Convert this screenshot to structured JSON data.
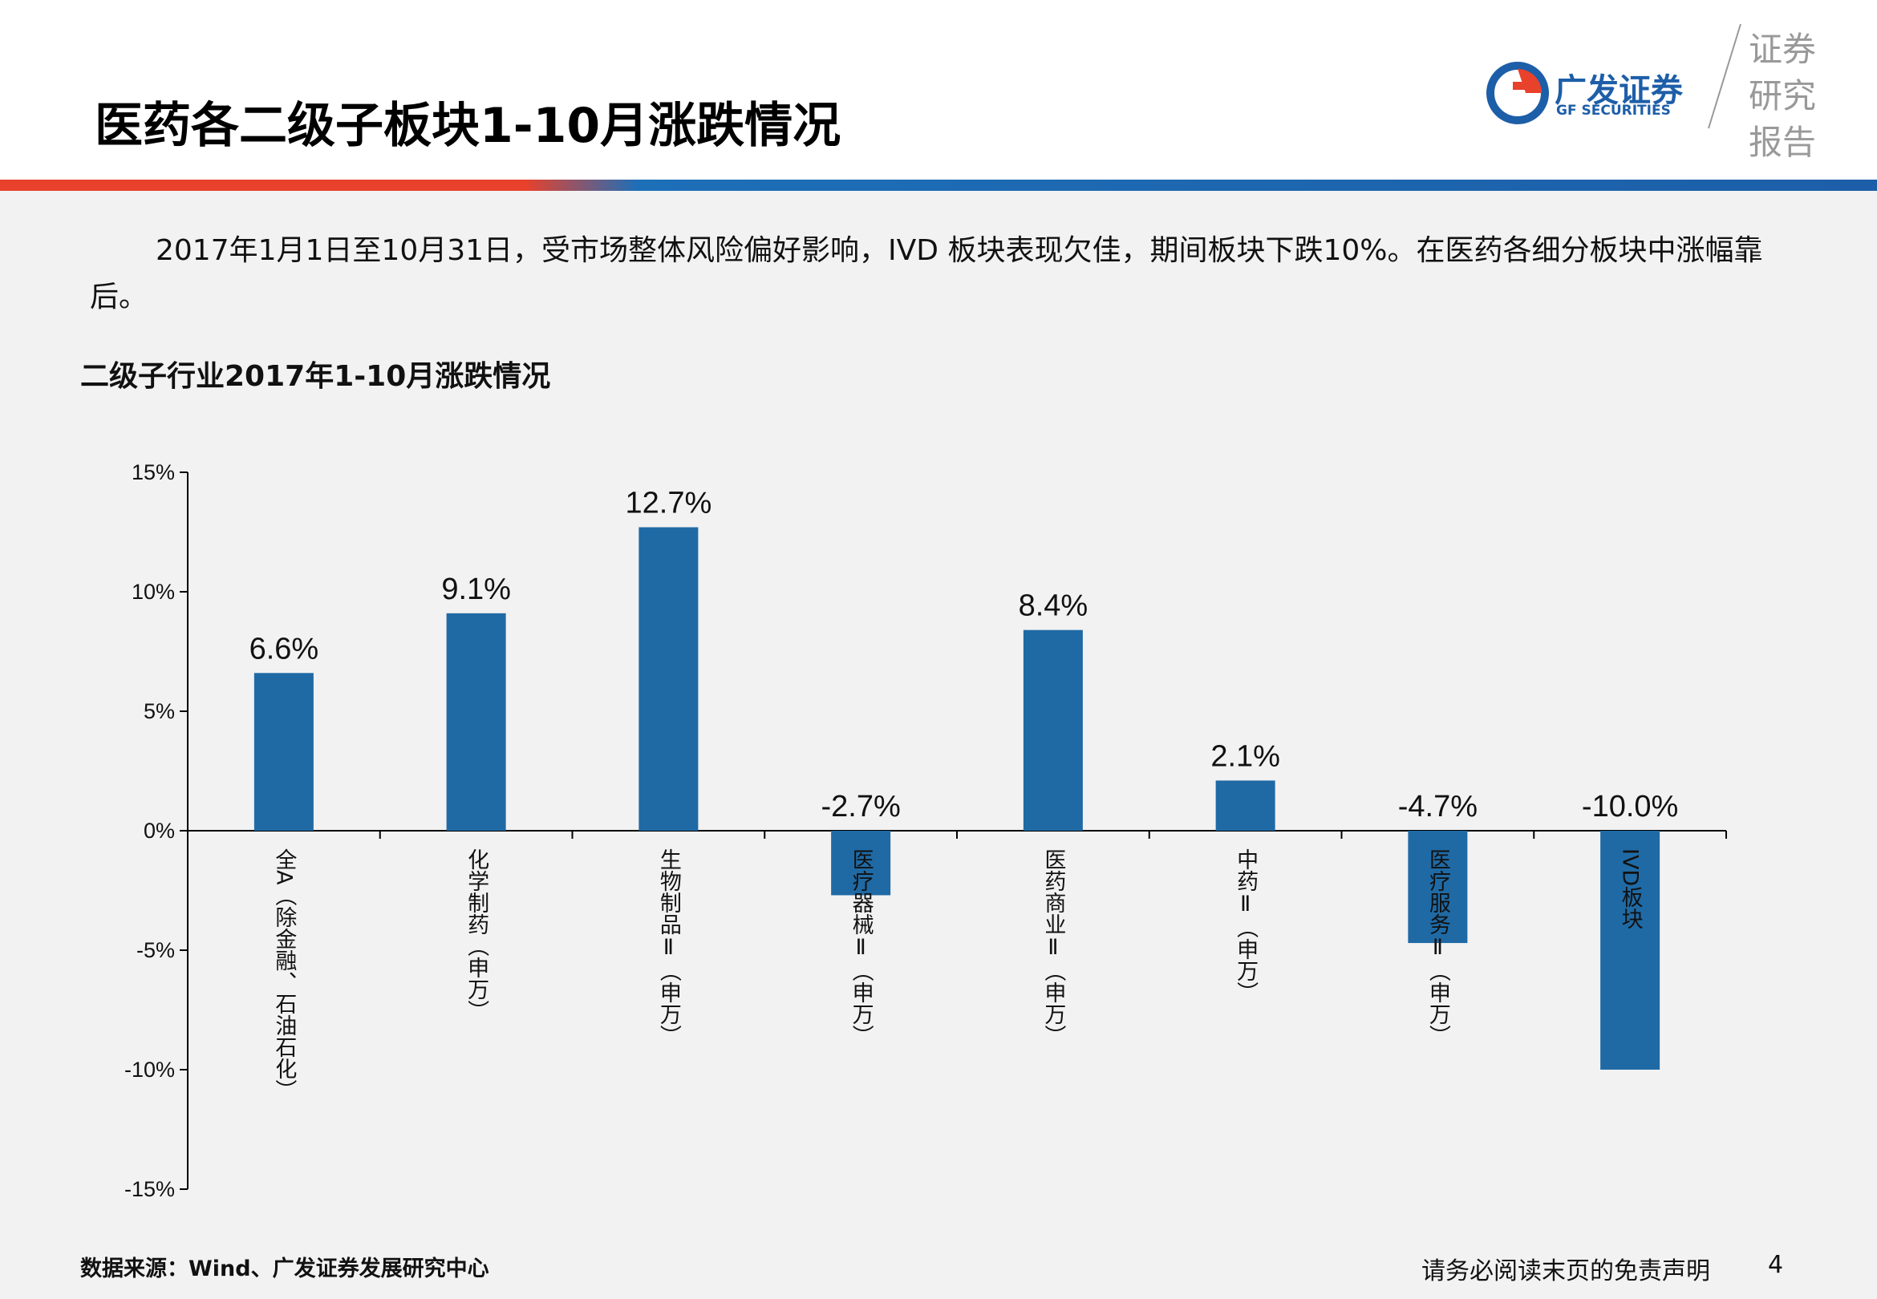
{
  "header": {
    "title": "医药各二级子板块1-10月涨跌情况",
    "logo_cn": "广发证券",
    "logo_en": "GF SECURITIES",
    "badge": [
      "证券",
      "研究",
      "报告"
    ]
  },
  "body": {
    "paragraph": "2017年1月1日至10月31日，受市场整体风险偏好影响，IVD 板块表现欠佳，期间板块下跌10%。在医药各细分板块中涨幅靠后。"
  },
  "chart_data": {
    "type": "bar",
    "title": "二级子行业2017年1-10月涨跌情况",
    "categories": [
      "全A（除金融、石油石化）",
      "化学制药（申万）",
      "生物制品Ⅱ（申万）",
      "医疗器械Ⅱ（申万）",
      "医药商业Ⅱ（申万）",
      "中药Ⅱ（申万）",
      "医疗服务Ⅱ（申万）",
      "IVD板块"
    ],
    "values": [
      6.6,
      9.1,
      12.7,
      -2.7,
      8.4,
      2.1,
      -4.7,
      -10.0
    ],
    "value_labels": [
      "6.6%",
      "9.1%",
      "12.7%",
      "-2.7%",
      "8.4%",
      "2.1%",
      "-4.7%",
      "-10.0%"
    ],
    "color": "#1f6aa5",
    "ylim": [
      -15,
      15
    ],
    "yticks": [
      {
        "value": -15,
        "label": "-15%"
      },
      {
        "value": -10,
        "label": "-10%"
      },
      {
        "value": -5,
        "label": "-5%"
      },
      {
        "value": 0,
        "label": "0%"
      },
      {
        "value": 5,
        "label": "5%"
      },
      {
        "value": 10,
        "label": "10%"
      },
      {
        "value": 15,
        "label": "15%"
      }
    ],
    "grid": false
  },
  "footer": {
    "source": "数据来源：Wind、广发证券发展研究中心",
    "disclaimer": "请务必阅读末页的免责声明",
    "page": "4"
  }
}
